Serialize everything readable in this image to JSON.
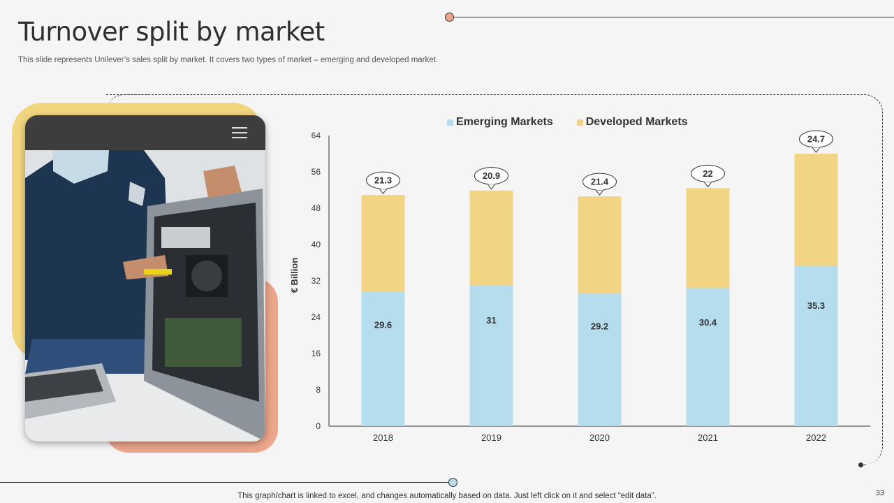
{
  "slide": {
    "title": "Turnover split by market",
    "subtitle": "This slide represents Unilever’s sales split by market. It covers two types of market – emerging and developed market.",
    "footer_note": "This graph/chart is linked to excel,  and changes automatically based on data. Just left click on it and select “edit data”.",
    "page_number": "33"
  },
  "colors": {
    "emerging": "#b6ddee",
    "developed": "#f1d584",
    "accent_peach": "#eca68b",
    "accent_blue": "#b6ddee"
  },
  "icons": {
    "tablet_menu": "hamburger-menu-icon"
  },
  "chart_data": {
    "type": "bar",
    "stacked": true,
    "categories": [
      "2018",
      "2019",
      "2020",
      "2021",
      "2022"
    ],
    "series": [
      {
        "name": "Emerging Markets",
        "values": [
          29.6,
          31,
          29.2,
          30.4,
          35.3
        ]
      },
      {
        "name": "Developed Markets",
        "values": [
          21.3,
          20.9,
          21.4,
          22,
          24.7
        ]
      }
    ],
    "ylabel": "€ Billion",
    "ylim": [
      0,
      64
    ],
    "yticks": [
      0,
      8,
      16,
      24,
      32,
      40,
      48,
      56,
      64
    ],
    "legend_position": "top",
    "grid": false,
    "data_labels": "inside-bottom-series; callout-top-series"
  }
}
